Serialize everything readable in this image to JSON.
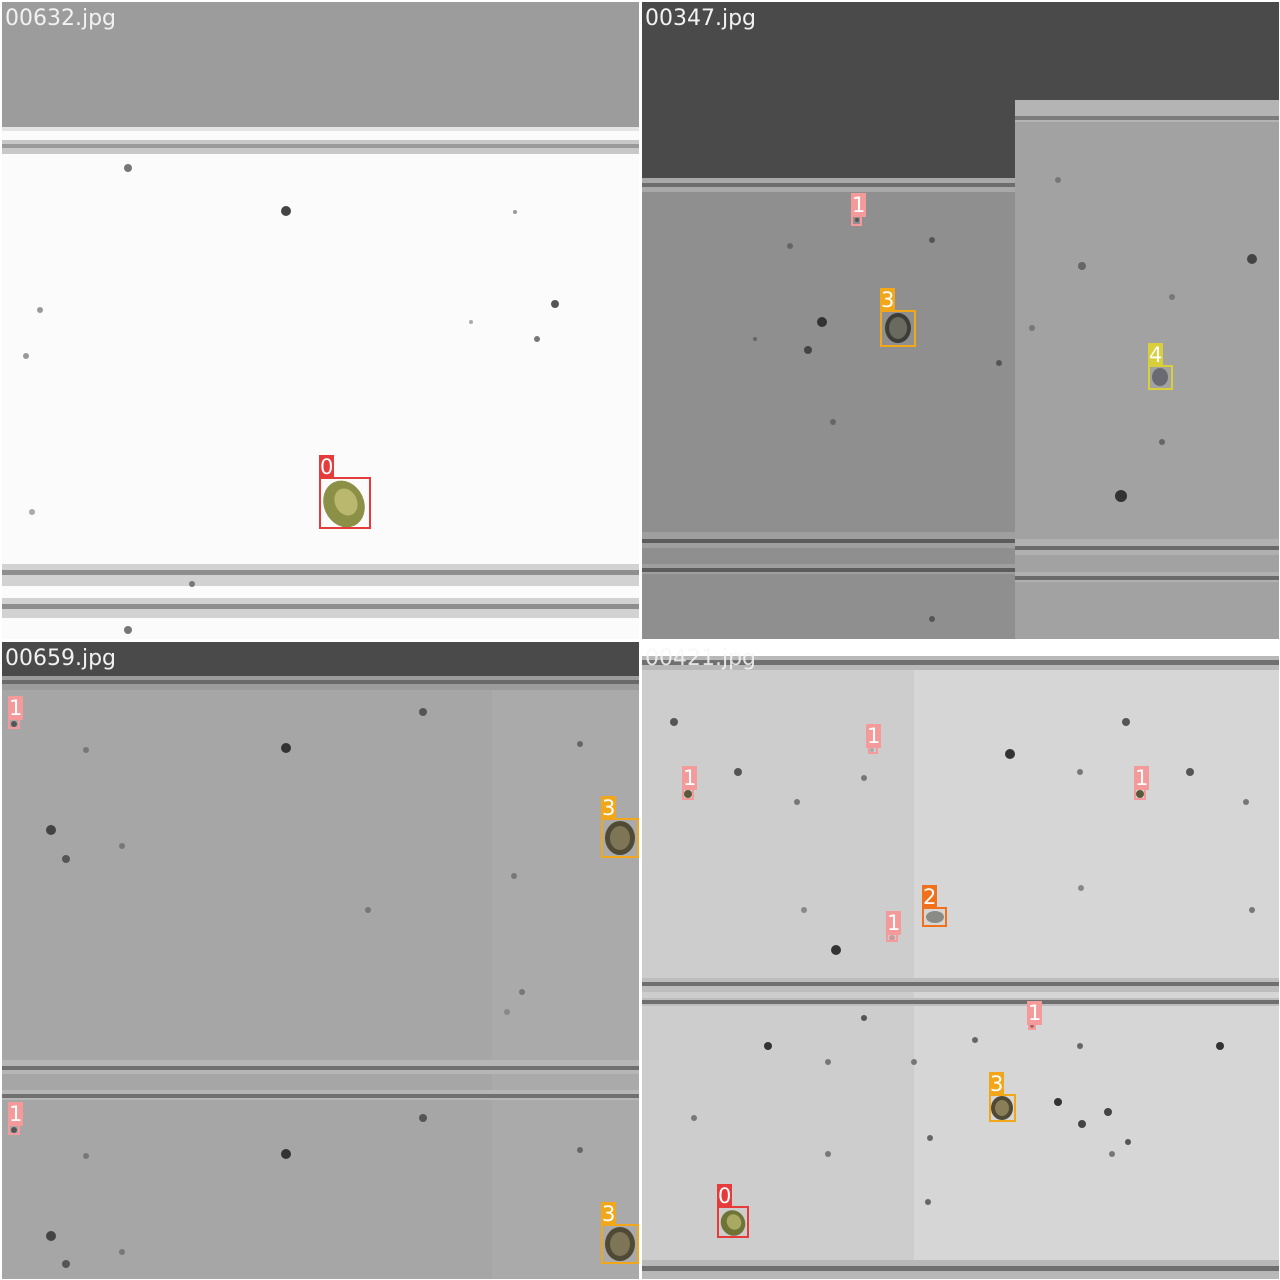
{
  "tiles": [
    {
      "filename": "00632.jpg",
      "detections": [
        {
          "label": "0",
          "color": "#e63b3b"
        }
      ]
    },
    {
      "filename": "00347.jpg",
      "detections": [
        {
          "label": "1",
          "color": "#f49a9a"
        },
        {
          "label": "3",
          "color": "#f2a71b"
        },
        {
          "label": "4",
          "color": "#d9cf3a"
        }
      ]
    },
    {
      "filename": "00659.jpg",
      "detections": [
        {
          "label": "1",
          "color": "#f49a9a"
        },
        {
          "label": "3",
          "color": "#f2a71b"
        },
        {
          "label": "1",
          "color": "#f49a9a"
        },
        {
          "label": "3",
          "color": "#f2a71b"
        }
      ]
    },
    {
      "filename": "00421.jpg",
      "detections": [
        {
          "label": "1",
          "color": "#f49a9a"
        },
        {
          "label": "1",
          "color": "#f49a9a"
        },
        {
          "label": "1",
          "color": "#f49a9a"
        },
        {
          "label": "2",
          "color": "#f0701c"
        },
        {
          "label": "1",
          "color": "#f49a9a"
        },
        {
          "label": "1",
          "color": "#f49a9a"
        },
        {
          "label": "3",
          "color": "#f2a71b"
        },
        {
          "label": "0",
          "color": "#e63b3b"
        }
      ]
    }
  ]
}
